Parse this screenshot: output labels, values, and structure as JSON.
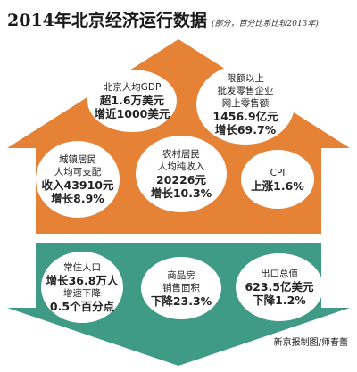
{
  "header": {
    "title": "2014年北京经济运行数据",
    "note": "(部分，百分比系比较2013年)"
  },
  "colors": {
    "house": "#e58236",
    "arrow": "#3f9a86",
    "bubble": "#ffffff"
  },
  "house_items": [
    {
      "lines": [
        "北京人均GDP",
        "超1.6万美元",
        "增近1000美元"
      ]
    },
    {
      "lines": [
        "限额以上",
        "批发零售企业",
        "网上零售额",
        "1456.9亿元",
        "增长69.7%"
      ]
    },
    {
      "lines": [
        "城镇居民",
        "人均可支配",
        "收入43910元",
        "增长8.9%"
      ]
    },
    {
      "lines": [
        "农村居民",
        "人均纯收入",
        "20226元",
        "增长10.3%"
      ]
    },
    {
      "lines": [
        "CPI",
        "上涨1.6%"
      ]
    }
  ],
  "arrow_items": [
    {
      "lines": [
        "常住人口",
        "增长36.8万人",
        "增速下降",
        "0.5个百分点"
      ]
    },
    {
      "lines": [
        "商品房",
        "销售面积",
        "下降23.3%"
      ]
    },
    {
      "lines": [
        "出口总值",
        "623.5亿美元",
        "下降1.2%"
      ]
    }
  ],
  "credit": "新京报制图/师春蕾"
}
